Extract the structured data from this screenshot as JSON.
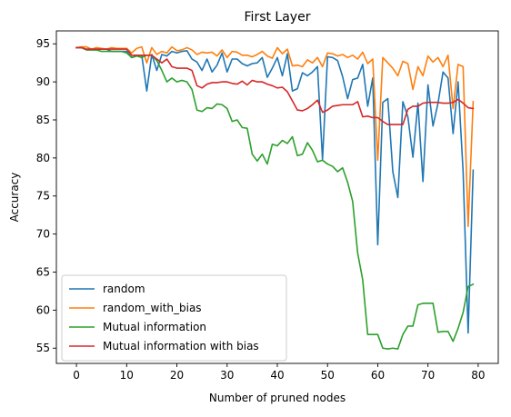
{
  "chart_data": {
    "type": "line",
    "title": "First Layer",
    "xlabel": "Number of pruned nodes",
    "ylabel": "Accuracy",
    "xlim": [
      -4,
      84
    ],
    "ylim": [
      53,
      96.7
    ],
    "xticks": [
      0,
      10,
      20,
      30,
      40,
      50,
      60,
      70,
      80
    ],
    "yticks": [
      55,
      60,
      65,
      70,
      75,
      80,
      85,
      90,
      95
    ],
    "grid": false,
    "legend": "lower-left",
    "series": [
      {
        "name": "random",
        "color": "#1f77b4",
        "x": [
          0,
          1,
          2,
          3,
          4,
          5,
          6,
          7,
          8,
          9,
          10,
          11,
          12,
          13,
          14,
          15,
          16,
          17,
          18,
          19,
          20,
          21,
          22,
          23,
          24,
          25,
          26,
          27,
          28,
          29,
          30,
          31,
          32,
          33,
          34,
          35,
          36,
          37,
          38,
          39,
          40,
          41,
          42,
          43,
          44,
          45,
          46,
          47,
          48,
          49,
          50,
          51,
          52,
          53,
          54,
          55,
          56,
          57,
          58,
          59,
          60,
          61,
          62,
          63,
          64,
          65,
          66,
          67,
          68,
          69,
          70,
          71,
          72,
          73,
          74,
          75,
          76,
          77,
          78,
          79
        ],
        "y": [
          94.5,
          94.5,
          94.2,
          94.2,
          94.2,
          94.3,
          94.3,
          94.0,
          94.0,
          94.0,
          94.0,
          93.2,
          93.4,
          93.5,
          88.8,
          93.6,
          91.5,
          93.6,
          93.4,
          94.0,
          93.8,
          94.0,
          94.1,
          93.0,
          92.6,
          91.5,
          93.0,
          91.3,
          92.2,
          93.8,
          91.3,
          93.0,
          93.0,
          92.4,
          92.1,
          92.4,
          92.5,
          93.2,
          90.6,
          91.8,
          93.2,
          90.8,
          93.7,
          88.8,
          89.1,
          91.2,
          90.8,
          91.3,
          92.0,
          79.8,
          93.3,
          93.2,
          92.8,
          90.7,
          87.8,
          90.3,
          90.5,
          92.3,
          86.8,
          90.5,
          68.6,
          87.3,
          87.8,
          78.2,
          74.8,
          87.4,
          85.4,
          80.1,
          87.2,
          76.9,
          89.6,
          84.2,
          87.2,
          91.3,
          90.5,
          83.2,
          90.0,
          78.2,
          57.0,
          78.4
        ]
      },
      {
        "name": "random_with_bias",
        "color": "#ff7f0e",
        "x": [
          0,
          1,
          2,
          3,
          4,
          5,
          6,
          7,
          8,
          9,
          10,
          11,
          12,
          13,
          14,
          15,
          16,
          17,
          18,
          19,
          20,
          21,
          22,
          23,
          24,
          25,
          26,
          27,
          28,
          29,
          30,
          31,
          32,
          33,
          34,
          35,
          36,
          37,
          38,
          39,
          40,
          41,
          42,
          43,
          44,
          45,
          46,
          47,
          48,
          49,
          50,
          51,
          52,
          53,
          54,
          55,
          56,
          57,
          58,
          59,
          60,
          61,
          62,
          63,
          64,
          65,
          66,
          67,
          68,
          69,
          70,
          71,
          72,
          73,
          74,
          75,
          76,
          77,
          78,
          79
        ],
        "y": [
          94.5,
          94.6,
          94.6,
          94.3,
          94.5,
          94.4,
          94.3,
          94.5,
          94.4,
          94.4,
          94.4,
          93.8,
          94.4,
          94.6,
          92.5,
          94.5,
          93.6,
          94.0,
          93.8,
          94.6,
          94.1,
          94.2,
          94.5,
          94.2,
          93.6,
          93.9,
          93.8,
          93.9,
          93.4,
          94.2,
          93.2,
          94.0,
          93.9,
          93.5,
          93.5,
          93.3,
          93.6,
          94.0,
          93.4,
          93.1,
          94.5,
          93.7,
          94.3,
          92.1,
          92.2,
          92.0,
          92.9,
          92.5,
          93.2,
          92.0,
          93.8,
          93.7,
          93.4,
          93.6,
          93.2,
          93.5,
          93.0,
          93.9,
          92.4,
          93.0,
          79.7,
          93.2,
          92.5,
          91.8,
          90.8,
          92.7,
          92.4,
          89.0,
          92.0,
          90.8,
          93.4,
          92.6,
          93.2,
          92.0,
          93.5,
          86.5,
          92.3,
          92.0,
          71.0,
          87.4
        ]
      },
      {
        "name": "Mutual information",
        "color": "#2ca02c",
        "x": [
          0,
          1,
          2,
          3,
          4,
          5,
          6,
          7,
          8,
          9,
          10,
          11,
          12,
          13,
          14,
          15,
          16,
          17,
          18,
          19,
          20,
          21,
          22,
          23,
          24,
          25,
          26,
          27,
          28,
          29,
          30,
          31,
          32,
          33,
          34,
          35,
          36,
          37,
          38,
          39,
          40,
          41,
          42,
          43,
          44,
          45,
          46,
          47,
          48,
          49,
          50,
          51,
          52,
          53,
          54,
          55,
          56,
          57,
          58,
          59,
          60,
          61,
          62,
          63,
          64,
          65,
          66,
          67,
          68,
          69,
          70,
          71,
          72,
          73,
          74,
          75,
          76,
          77,
          78,
          79
        ],
        "y": [
          94.5,
          94.5,
          94.2,
          94.2,
          94.2,
          94.0,
          94.0,
          94.0,
          94.0,
          94.0,
          93.8,
          93.2,
          93.4,
          93.2,
          93.5,
          93.5,
          92.8,
          91.5,
          90.0,
          90.5,
          90.0,
          90.2,
          90.0,
          89.0,
          86.3,
          86.1,
          86.6,
          86.5,
          87.1,
          87.0,
          86.5,
          84.8,
          85.0,
          84.0,
          83.9,
          80.5,
          79.6,
          80.5,
          79.2,
          81.8,
          81.6,
          82.3,
          81.9,
          82.8,
          80.3,
          80.5,
          82.0,
          81.0,
          79.5,
          79.7,
          79.2,
          78.9,
          78.2,
          78.7,
          76.8,
          74.3,
          67.5,
          64.0,
          56.8,
          56.8,
          56.8,
          55.0,
          54.9,
          55.0,
          54.9,
          56.8,
          57.9,
          57.9,
          60.7,
          60.9,
          60.9,
          60.9,
          57.1,
          57.2,
          57.2,
          55.9,
          57.6,
          59.7,
          63.1,
          63.4
        ]
      },
      {
        "name": "Mutual information with bias",
        "color": "#d62728",
        "x": [
          0,
          1,
          2,
          3,
          4,
          5,
          6,
          7,
          8,
          9,
          10,
          11,
          12,
          13,
          14,
          15,
          16,
          17,
          18,
          19,
          20,
          21,
          22,
          23,
          24,
          25,
          26,
          27,
          28,
          29,
          30,
          31,
          32,
          33,
          34,
          35,
          36,
          37,
          38,
          39,
          40,
          41,
          42,
          43,
          44,
          45,
          46,
          47,
          48,
          49,
          50,
          51,
          52,
          53,
          54,
          55,
          56,
          57,
          58,
          59,
          60,
          61,
          62,
          63,
          64,
          65,
          66,
          67,
          68,
          69,
          70,
          71,
          72,
          73,
          74,
          75,
          76,
          77,
          78,
          79
        ],
        "y": [
          94.5,
          94.5,
          94.3,
          94.3,
          94.3,
          94.3,
          94.3,
          94.3,
          94.3,
          94.3,
          94.3,
          93.5,
          93.5,
          93.5,
          93.5,
          93.5,
          93.0,
          92.5,
          93.0,
          92.0,
          91.8,
          91.8,
          91.8,
          91.5,
          89.5,
          89.2,
          89.7,
          89.9,
          89.9,
          90.0,
          90.0,
          89.8,
          89.7,
          90.1,
          89.6,
          90.2,
          90.0,
          90.0,
          89.7,
          89.5,
          89.2,
          89.3,
          88.7,
          87.5,
          86.3,
          86.2,
          86.5,
          87.0,
          87.6,
          86.0,
          86.3,
          86.8,
          86.9,
          87.0,
          87.0,
          87.0,
          87.4,
          85.4,
          85.5,
          85.3,
          85.3,
          84.8,
          84.4,
          84.4,
          84.4,
          84.4,
          86.4,
          86.8,
          86.8,
          87.2,
          87.3,
          87.3,
          87.3,
          87.2,
          87.2,
          87.3,
          87.7,
          87.2,
          86.6,
          86.5
        ]
      }
    ]
  }
}
